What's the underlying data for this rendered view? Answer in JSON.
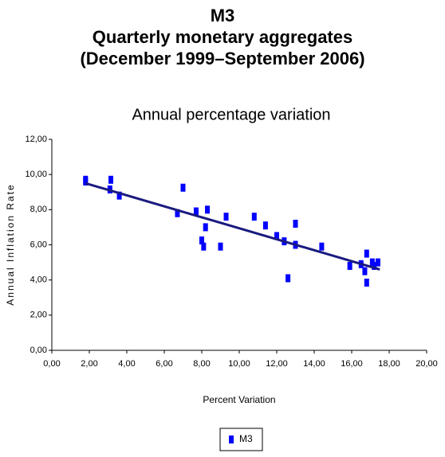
{
  "chart_data": {
    "type": "scatter",
    "title": [
      "M3",
      "Quarterly monetary aggregates",
      "(December 1999–September 2006)"
    ],
    "subtitle": "Annual percentage variation",
    "x_label": "Percent Variation",
    "y_label": "Annual Inflation Rate",
    "xlim": [
      0,
      20
    ],
    "ylim": [
      0,
      12
    ],
    "xticks": [
      {
        "value": 0,
        "label": "0,00"
      },
      {
        "value": 2,
        "label": "2,00"
      },
      {
        "value": 4,
        "label": "4,00"
      },
      {
        "value": 6,
        "label": "6,00"
      },
      {
        "value": 8,
        "label": "8,00"
      },
      {
        "value": 10,
        "label": "10,00"
      },
      {
        "value": 12,
        "label": "12,00"
      },
      {
        "value": 14,
        "label": "14,00"
      },
      {
        "value": 16,
        "label": "16,00"
      },
      {
        "value": 18,
        "label": "18,00"
      },
      {
        "value": 20,
        "label": "20,00"
      }
    ],
    "yticks": [
      {
        "value": 0,
        "label": "0,00"
      },
      {
        "value": 2,
        "label": "2,00"
      },
      {
        "value": 4,
        "label": "4,00"
      },
      {
        "value": 6,
        "label": "6,00"
      },
      {
        "value": 8,
        "label": "8,00"
      },
      {
        "value": 10,
        "label": "10,00"
      },
      {
        "value": 12,
        "label": "12,00"
      }
    ],
    "series": [
      {
        "name": "M3",
        "color": "#0000ff",
        "x": [
          1.8,
          1.8,
          3.1,
          3.15,
          3.6,
          6.7,
          7.0,
          7.7,
          8.0,
          8.1,
          8.3,
          8.2,
          9.0,
          9.3,
          10.8,
          11.4,
          12.0,
          12.4,
          12.6,
          13.0,
          13.0,
          14.4,
          15.9,
          16.5,
          16.7,
          16.8,
          16.8,
          17.1,
          17.4,
          17.2
        ],
        "values": [
          9.6,
          9.7,
          9.15,
          9.7,
          8.8,
          7.8,
          9.25,
          7.9,
          6.25,
          5.9,
          8.0,
          7.0,
          5.9,
          7.6,
          7.6,
          7.1,
          6.5,
          6.2,
          4.1,
          7.2,
          6.0,
          5.9,
          4.8,
          4.9,
          4.5,
          5.5,
          3.85,
          5.0,
          5.0,
          4.8
        ]
      }
    ],
    "trendline": {
      "color": "#1a1a80",
      "x": [
        1.8,
        17.5
      ],
      "values": [
        9.5,
        4.6
      ]
    },
    "grid": false,
    "legend": "bottom"
  }
}
